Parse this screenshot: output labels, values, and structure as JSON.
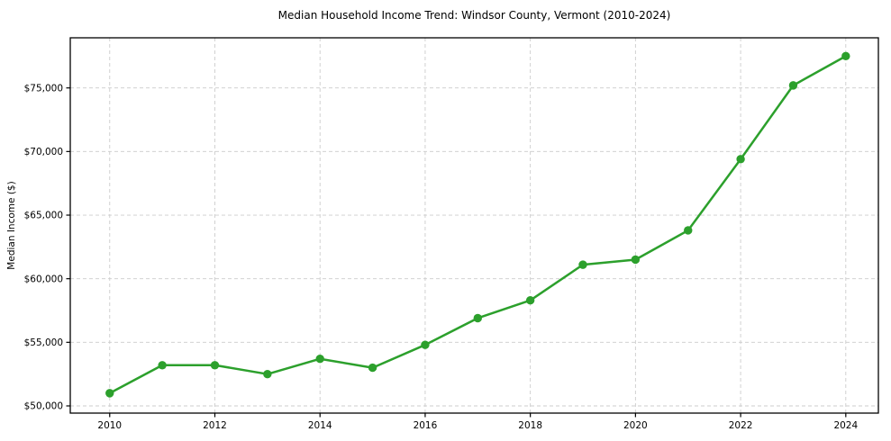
{
  "chart_data": {
    "type": "line",
    "title": "Median Household Income Trend: Windsor County, Vermont (2010-2024)",
    "xlabel": "",
    "ylabel": "Median Income ($)",
    "x": [
      2010,
      2011,
      2012,
      2013,
      2014,
      2015,
      2016,
      2017,
      2018,
      2019,
      2020,
      2021,
      2022,
      2023,
      2024
    ],
    "values": [
      51000,
      53200,
      53200,
      52500,
      53700,
      53000,
      54800,
      56900,
      58300,
      61100,
      61500,
      63800,
      69400,
      75200,
      77500
    ],
    "x_ticks": [
      2010,
      2012,
      2014,
      2016,
      2018,
      2020,
      2022,
      2024
    ],
    "y_ticks": [
      50000,
      55000,
      60000,
      65000,
      70000,
      75000
    ],
    "y_tick_labels": [
      "$50,000",
      "$55,000",
      "$60,000",
      "$65,000",
      "$70,000",
      "$75,000"
    ],
    "xlim": [
      2009.25,
      2024.62
    ],
    "ylim": [
      49434,
      78941
    ],
    "grid": "dashed",
    "legend": "none",
    "marker": "circle",
    "line_color": "#2ca02c",
    "grid_color": "#cccccc",
    "axis_color": "#000000",
    "background_color": "#ffffff"
  }
}
